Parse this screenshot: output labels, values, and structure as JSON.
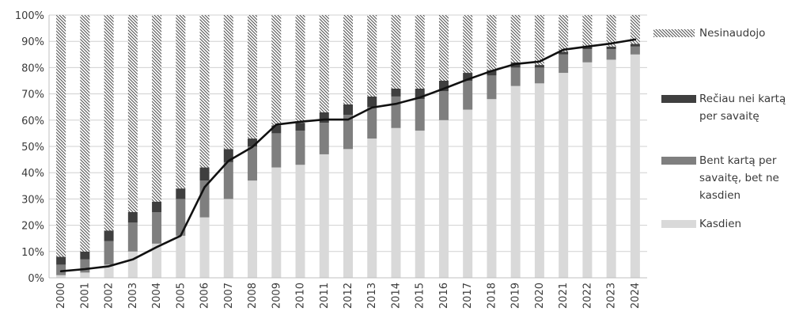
{
  "chart_data": {
    "type": "bar",
    "stacked": true,
    "categories": [
      "2000",
      "2001",
      "2002",
      "2003",
      "2004",
      "2005",
      "2006",
      "2007",
      "2008",
      "2009",
      "2010",
      "2011",
      "2012",
      "2013",
      "2014",
      "2015",
      "2016",
      "2017",
      "2018",
      "2019",
      "2020",
      "2021",
      "2022",
      "2023",
      "2024"
    ],
    "ylim": [
      0,
      100
    ],
    "y_ticks": [
      "0%",
      "10%",
      "20%",
      "30%",
      "40%",
      "50%",
      "60%",
      "70%",
      "80%",
      "90%",
      "100%"
    ],
    "grid": "horizontal",
    "legend_position": "right",
    "series": [
      {
        "name": "Kasdien",
        "color": "#d9d9d9",
        "values": [
          1,
          2,
          5,
          10,
          13,
          16,
          23,
          30,
          37,
          42,
          43,
          47,
          49,
          53,
          57,
          56,
          60,
          64,
          68,
          73,
          74,
          78,
          82,
          83,
          85
        ]
      },
      {
        "name": "Bent kartą per savaitę, bet ne kasdien",
        "color": "#7f7f7f",
        "values": [
          4,
          5,
          9,
          11,
          12,
          14,
          14,
          14,
          13,
          13,
          13,
          12,
          13,
          12,
          12,
          12,
          11,
          11,
          9,
          7,
          6,
          7,
          5,
          4,
          3
        ]
      },
      {
        "name": "Rečiau nei kartą per savaitę",
        "color": "#3f3f3f",
        "values": [
          3,
          3,
          4,
          4,
          4,
          4,
          5,
          5,
          3,
          3,
          3,
          4,
          4,
          4,
          3,
          4,
          4,
          3,
          2,
          2,
          1,
          1,
          1,
          1,
          1
        ]
      },
      {
        "name": "Nesinaudojo",
        "color": "hatch",
        "values": [
          92,
          90,
          82,
          75,
          71,
          66,
          58,
          51,
          47,
          42,
          41,
          37,
          34,
          31,
          28,
          28,
          25,
          22,
          21,
          18,
          19,
          14,
          12,
          12,
          11
        ]
      }
    ],
    "line": {
      "color": "#111111",
      "values": [
        2.5,
        3.3,
        4.4,
        7,
        11.7,
        16,
        34.5,
        44.5,
        49.8,
        58.3,
        59.4,
        60.2,
        60.2,
        64.8,
        66.2,
        68.6,
        72,
        75.5,
        78.7,
        81.4,
        82.3,
        86.8,
        88,
        89.2,
        90.7
      ]
    }
  },
  "legend": {
    "items": [
      {
        "key": "nesinaudojo",
        "lines": [
          "Nesinaudojo"
        ]
      },
      {
        "key": "reciau",
        "lines": [
          "Rečiau nei kartą",
          "per savaitę"
        ]
      },
      {
        "key": "bent",
        "lines": [
          "Bent kartą per",
          "savaitę, bet ne",
          "kasdien"
        ]
      },
      {
        "key": "kasdien",
        "lines": [
          "Kasdien"
        ]
      }
    ]
  }
}
